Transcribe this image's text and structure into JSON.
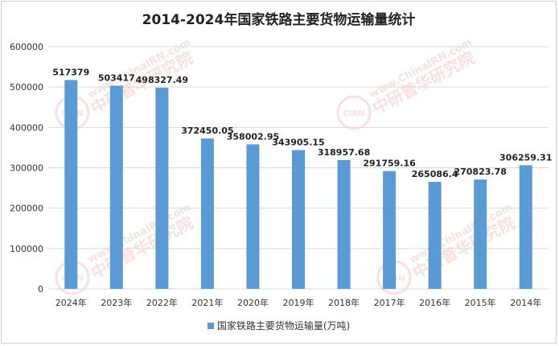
{
  "chart_data": {
    "type": "bar",
    "title": "2014-2024年国家铁路主要货物运输量统计",
    "categories": [
      "2024年",
      "2023年",
      "2022年",
      "2021年",
      "2020年",
      "2019年",
      "2018年",
      "2017年",
      "2016年",
      "2015年",
      "2014年"
    ],
    "series": [
      {
        "name": "国家铁路主要货物运输量(万吨)",
        "values": [
          517379,
          503417,
          498327.49,
          372450.05,
          358002.95,
          343905.15,
          318957.68,
          291759.16,
          265086.4,
          270823.78,
          306259.31
        ],
        "labels": [
          "517379",
          "503417",
          "498327.49",
          "372450.05",
          "358002.95",
          "343905.15",
          "318957.68",
          "291759.16",
          "265086.4",
          "270823.78",
          "306259.31"
        ],
        "color": "#5b9bd5"
      }
    ],
    "ylim": [
      0,
      600000
    ],
    "yticks": [
      0,
      100000,
      200000,
      300000,
      400000,
      500000,
      600000
    ],
    "grid": true,
    "legend": "bottom"
  },
  "watermark": {
    "url_text": "www.ChinaIRN.com",
    "cn_text": "中研普华研究院",
    "logo_text": "CIRN"
  }
}
